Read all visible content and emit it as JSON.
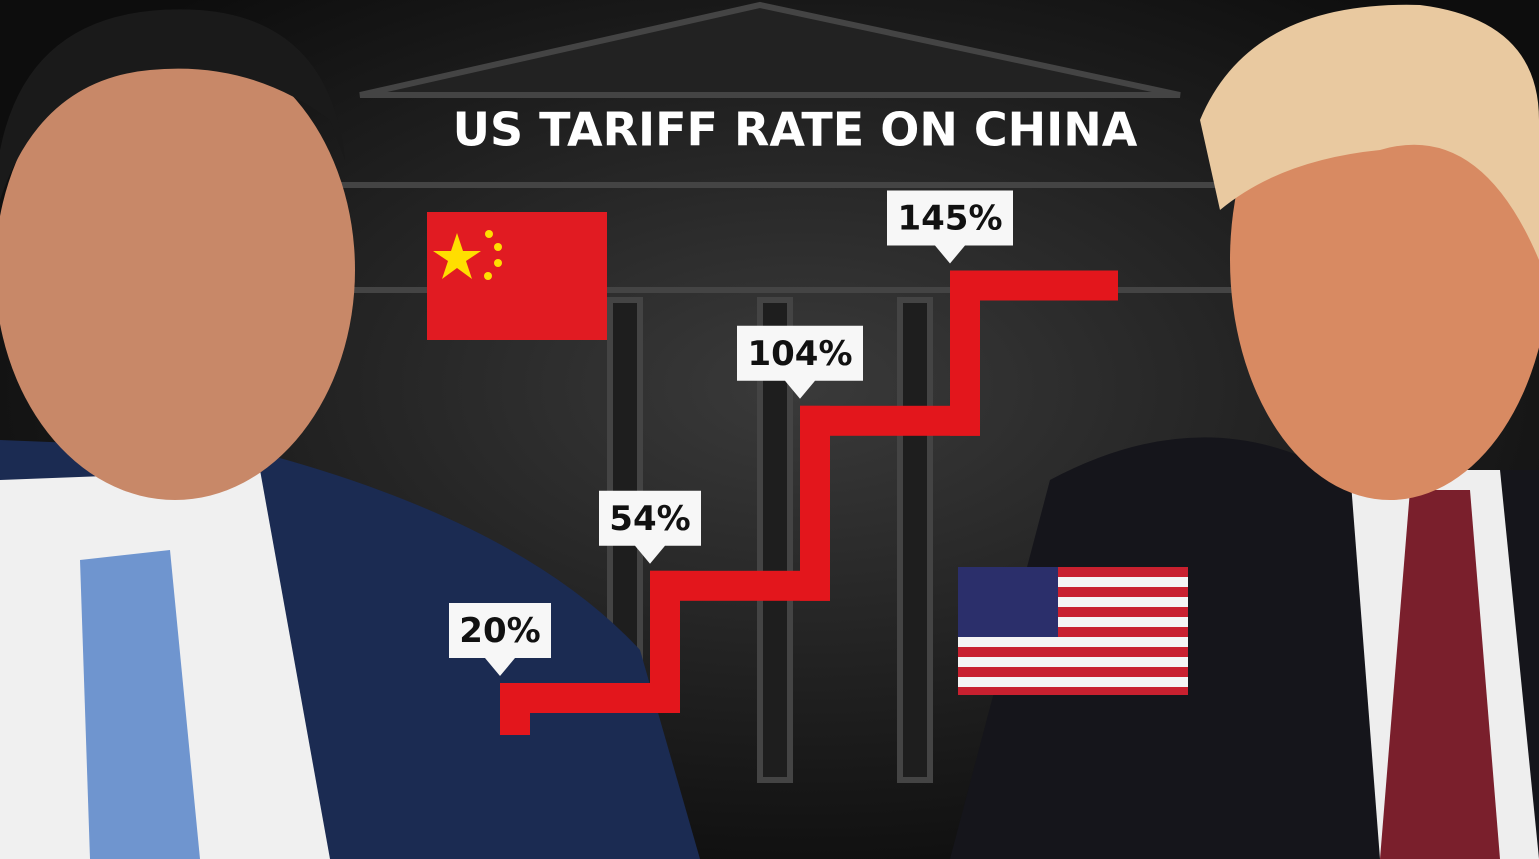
{
  "chart_data": {
    "type": "step",
    "title": "US TARIFF RATE ON CHINA",
    "categories": [
      null,
      null,
      null,
      null
    ],
    "values": [
      20,
      54,
      104,
      145
    ],
    "value_labels": [
      "20%",
      "54%",
      "104%",
      "145%"
    ],
    "color": "#e3161c"
  }
}
